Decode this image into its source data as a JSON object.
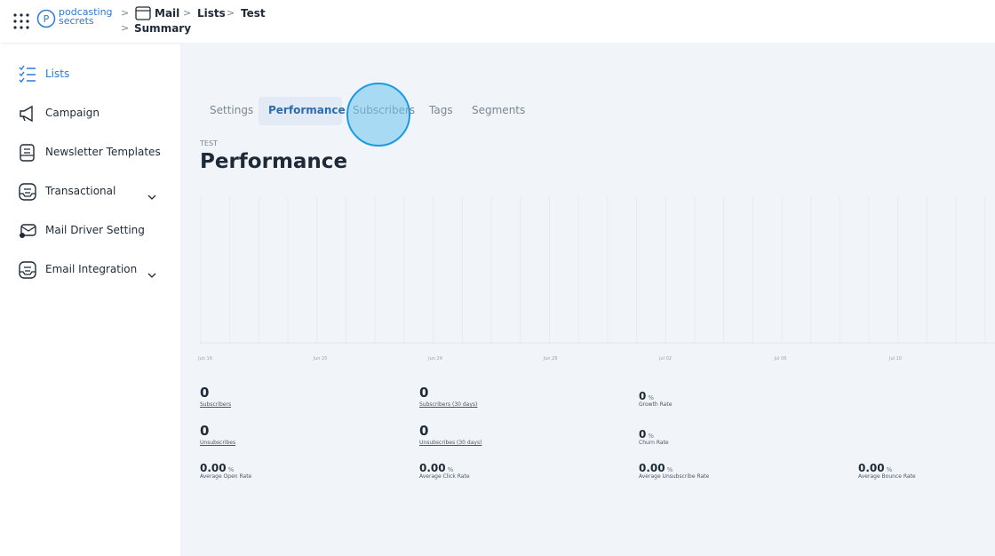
{
  "header": {
    "logo": {
      "line1": "podcasting",
      "line2": "secrets"
    },
    "breadcrumb": [
      "Mail",
      "Lists",
      "Test",
      "Summary"
    ]
  },
  "sidebar": {
    "items": [
      "Lists",
      "Campaign",
      "Newsletter Templates",
      "Transactional",
      "Mail Driver Setting",
      "Email Integration"
    ]
  },
  "tabs": [
    "Settings",
    "Performance",
    "Subscribers",
    "Tags",
    "Segments"
  ],
  "page": {
    "eyebrow": "TEST",
    "title": "Performance"
  },
  "chart": {
    "x_labels": [
      "Jun 16",
      "Jun 20",
      "Jun 24",
      "Jun 28",
      "Jul 02",
      "Jul 06",
      "Jul 10"
    ]
  },
  "stats": [
    {
      "value": "0",
      "label": "Subscribers"
    },
    {
      "value": "0",
      "label": "Subscribers (30 days)"
    },
    {
      "value": "0",
      "unit": "%",
      "label": "Growth Rate"
    },
    {
      "value": "0",
      "label": "Unsubscribes"
    },
    {
      "value": "0",
      "label": "Unsubscribes (30 days)"
    },
    {
      "value": "0",
      "unit": "%",
      "label": "Churn Rate"
    },
    {
      "value": "0.00",
      "unit": "%",
      "label": "Average Open Rate"
    },
    {
      "value": "0.00",
      "unit": "%",
      "label": "Average Click Rate"
    },
    {
      "value": "0.00",
      "unit": "%",
      "label": "Average Unsubscribe Rate"
    },
    {
      "value": "0.00",
      "unit": "%",
      "label": "Average Bounce Rate"
    }
  ]
}
